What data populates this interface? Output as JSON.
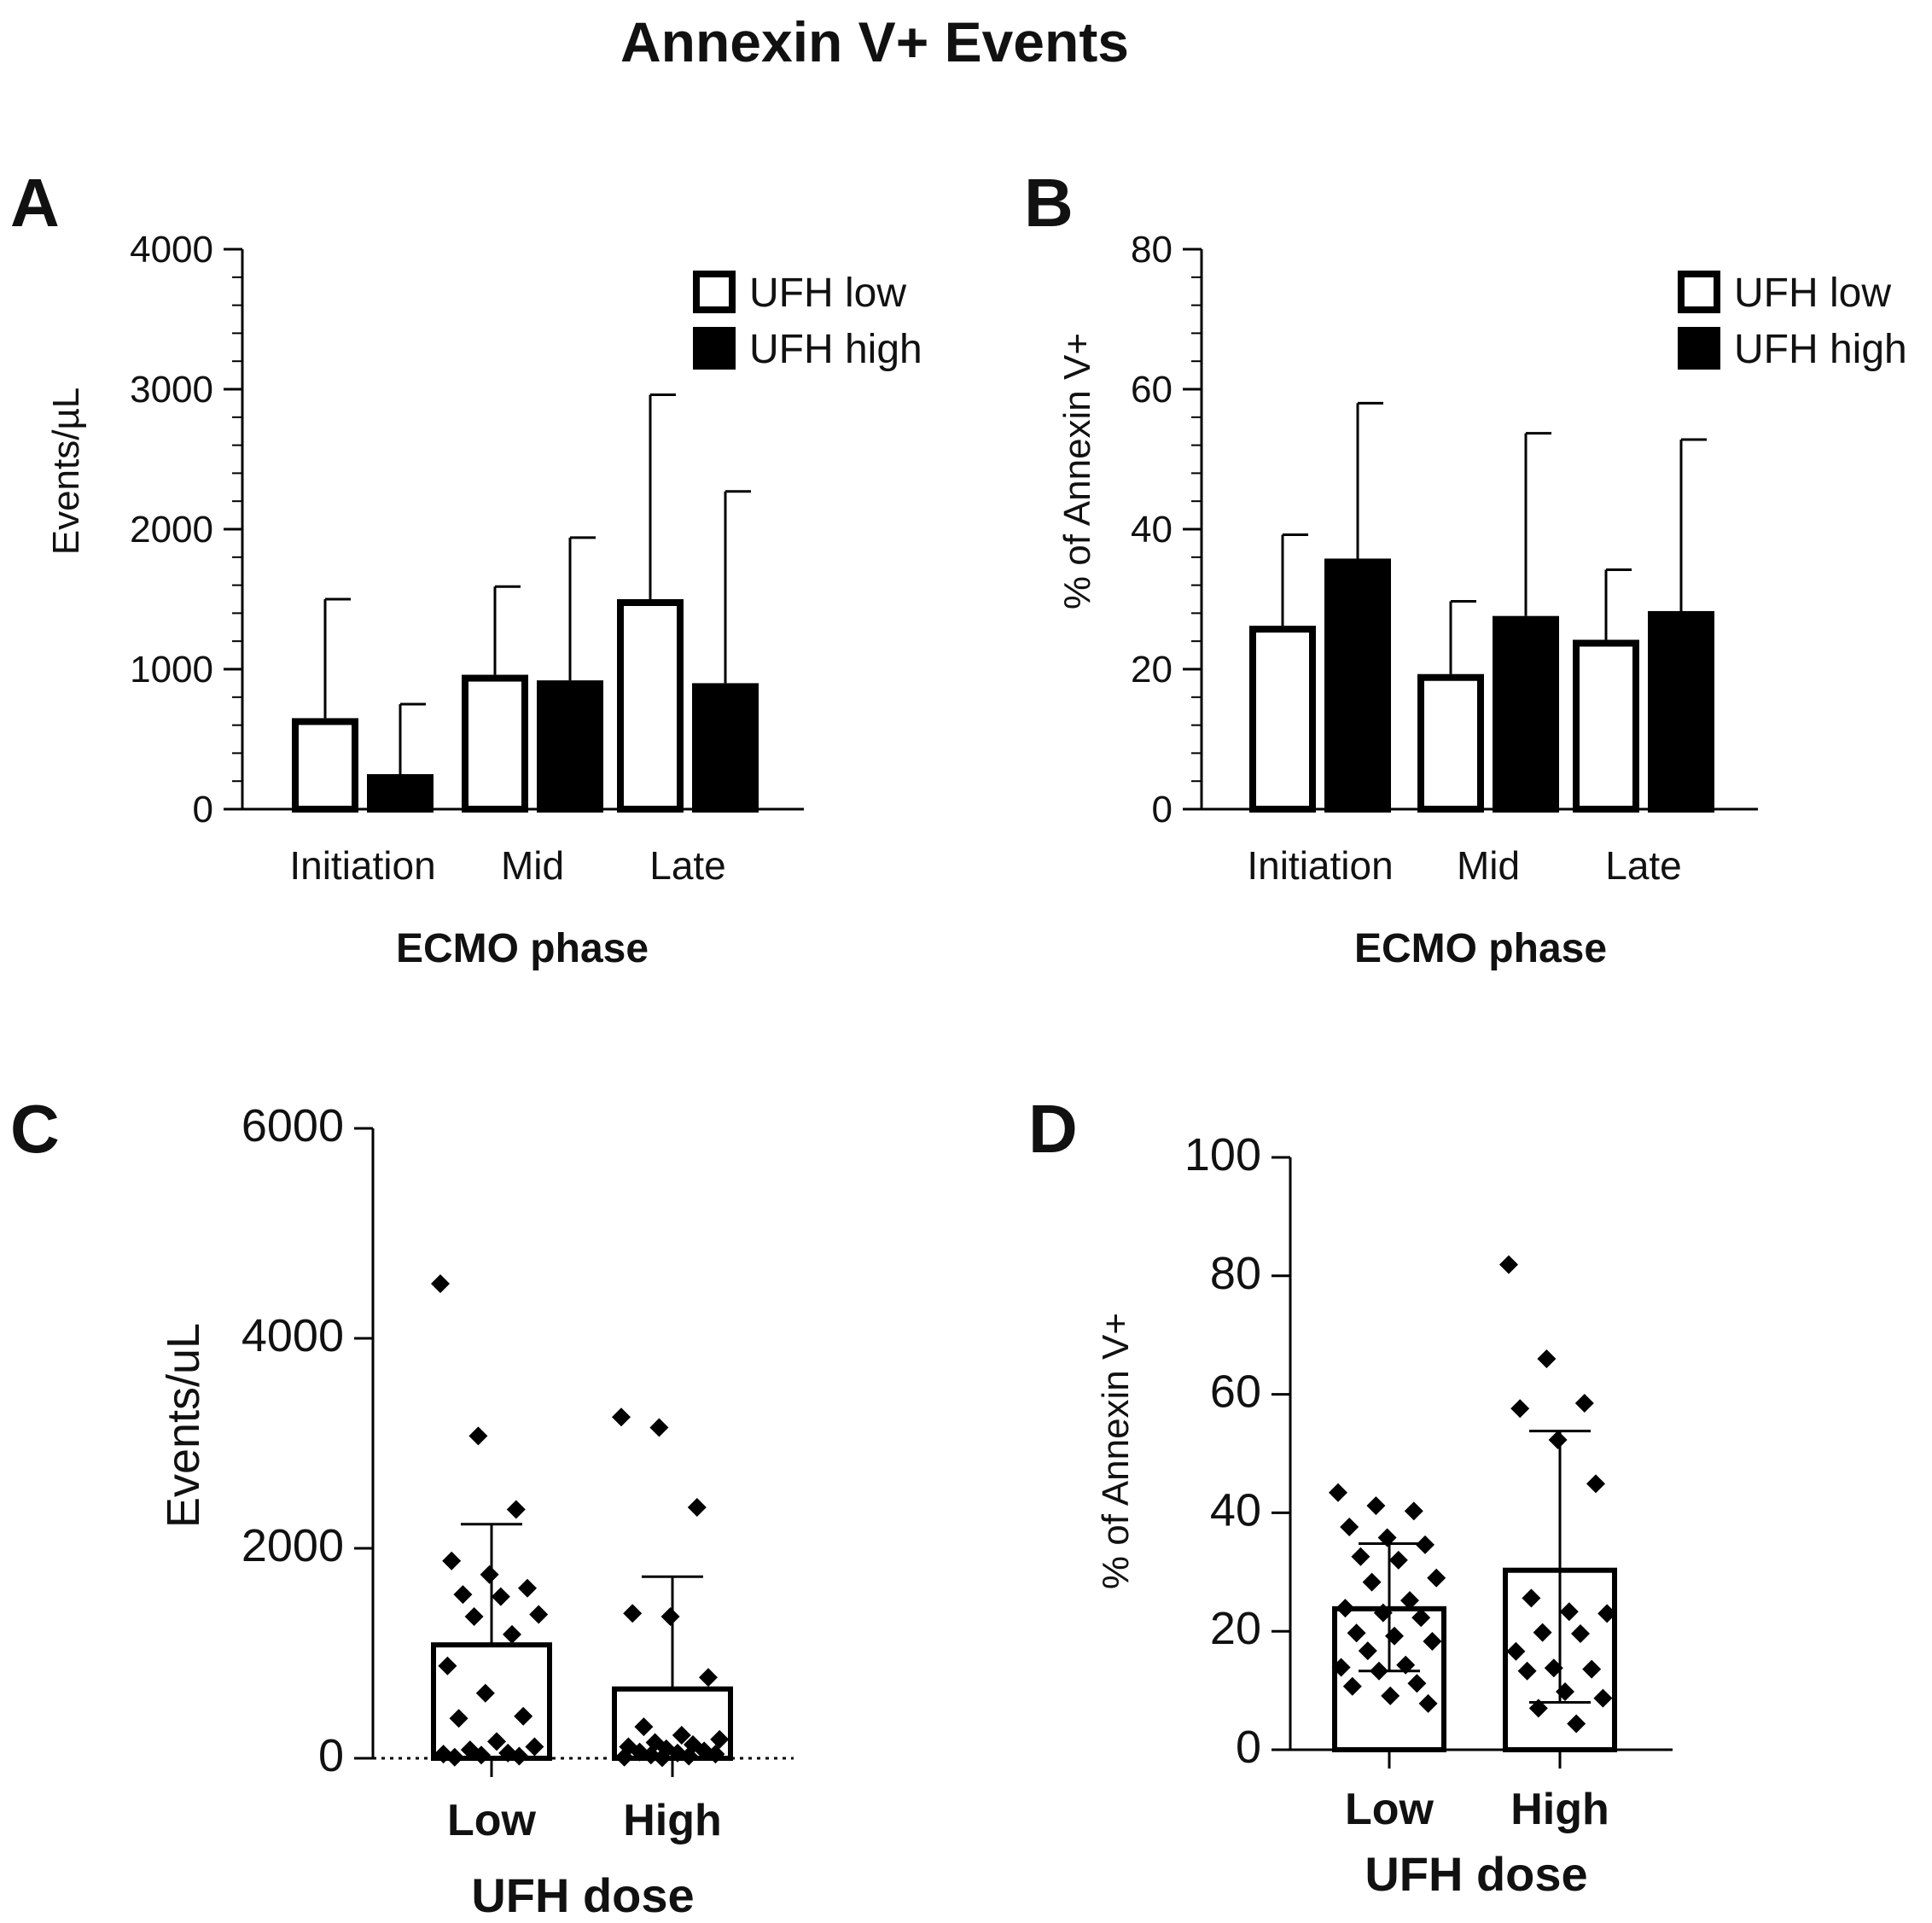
{
  "figure": {
    "title": "Annexin V+  Events"
  },
  "chart_data": [
    {
      "panel": "A",
      "type": "bar",
      "title": "",
      "xlabel": "ECMO phase",
      "ylabel": "Events/µL",
      "ylim": [
        0,
        4000
      ],
      "yticks": [
        0,
        1000,
        2000,
        3000,
        4000
      ],
      "categories": [
        "Initiation",
        "Mid",
        "Late"
      ],
      "legend_position": "top-right",
      "series": [
        {
          "name": "UFH low",
          "fill": "#ffffff",
          "values": [
            650,
            960,
            1500
          ],
          "error_upper": [
            1500,
            1590,
            2960
          ]
        },
        {
          "name": "UFH high",
          "fill": "#000000",
          "values": [
            250,
            920,
            900
          ],
          "error_upper": [
            750,
            1940,
            2270
          ]
        }
      ]
    },
    {
      "panel": "B",
      "type": "bar",
      "title": "",
      "xlabel": "ECMO phase",
      "ylabel": "% of Annexin V+",
      "ylim": [
        0,
        80
      ],
      "yticks": [
        0,
        20,
        40,
        60,
        80
      ],
      "categories": [
        "Initiation",
        "Mid",
        "Late"
      ],
      "legend_position": "top-right",
      "series": [
        {
          "name": "UFH low",
          "fill": "#ffffff",
          "values": [
            26.2,
            19.3,
            24.2
          ],
          "error_upper": [
            39.2,
            29.7,
            34.2
          ]
        },
        {
          "name": "UFH high",
          "fill": "#000000",
          "values": [
            35.8,
            27.6,
            28.3
          ],
          "error_upper": [
            58.0,
            53.7,
            52.8
          ]
        }
      ]
    },
    {
      "panel": "C",
      "type": "bar",
      "title": "",
      "xlabel": "UFH dose",
      "ylabel": "Events/uL",
      "ylim": [
        0,
        6000
      ],
      "yticks": [
        0,
        2000,
        4000,
        6000
      ],
      "categories": [
        "Low",
        "High"
      ],
      "dotted_zero_line": true,
      "bars": [
        {
          "category": "Low",
          "mean": 1080,
          "sd_upper": 2230,
          "points": [
            4520,
            3070,
            2370,
            1880,
            1750,
            1620,
            1560,
            1540,
            1370,
            1350,
            1180,
            880,
            620,
            400,
            380,
            160,
            110,
            80,
            50,
            40,
            30,
            20,
            10
          ]
        },
        {
          "category": "High",
          "mean": 660,
          "sd_upper": 1730,
          "points": [
            3250,
            3150,
            2390,
            1380,
            1350,
            770,
            300,
            220,
            180,
            150,
            130,
            110,
            90,
            70,
            60,
            50,
            40,
            30,
            20,
            10,
            5
          ]
        }
      ]
    },
    {
      "panel": "D",
      "type": "bar",
      "title": "",
      "xlabel": "UFH dose",
      "ylabel": "% of Annexin V+",
      "ylim": [
        0,
        100
      ],
      "yticks": [
        0,
        20,
        40,
        60,
        80,
        100
      ],
      "categories": [
        "Low",
        "High"
      ],
      "bars": [
        {
          "category": "Low",
          "mean": 23.8,
          "sd_upper": 34.8,
          "sd_lower": 13.3,
          "points": [
            43.4,
            41.2,
            40.3,
            37.6,
            35.8,
            34.6,
            32.6,
            32.0,
            29.0,
            28.3,
            25.2,
            23.9,
            23.1,
            22.3,
            19.7,
            19.2,
            18.3,
            16.7,
            14.3,
            13.9,
            13.3,
            11.2,
            10.7,
            9.1,
            7.8
          ]
        },
        {
          "category": "High",
          "mean": 30.3,
          "sd_upper": 53.8,
          "sd_lower": 8.0,
          "points": [
            81.9,
            66.0,
            58.5,
            57.6,
            52.3,
            44.9,
            25.6,
            23.3,
            23.0,
            19.8,
            19.6,
            16.6,
            13.8,
            13.6,
            13.3,
            9.8,
            8.7,
            7.0,
            4.4
          ]
        }
      ]
    }
  ]
}
